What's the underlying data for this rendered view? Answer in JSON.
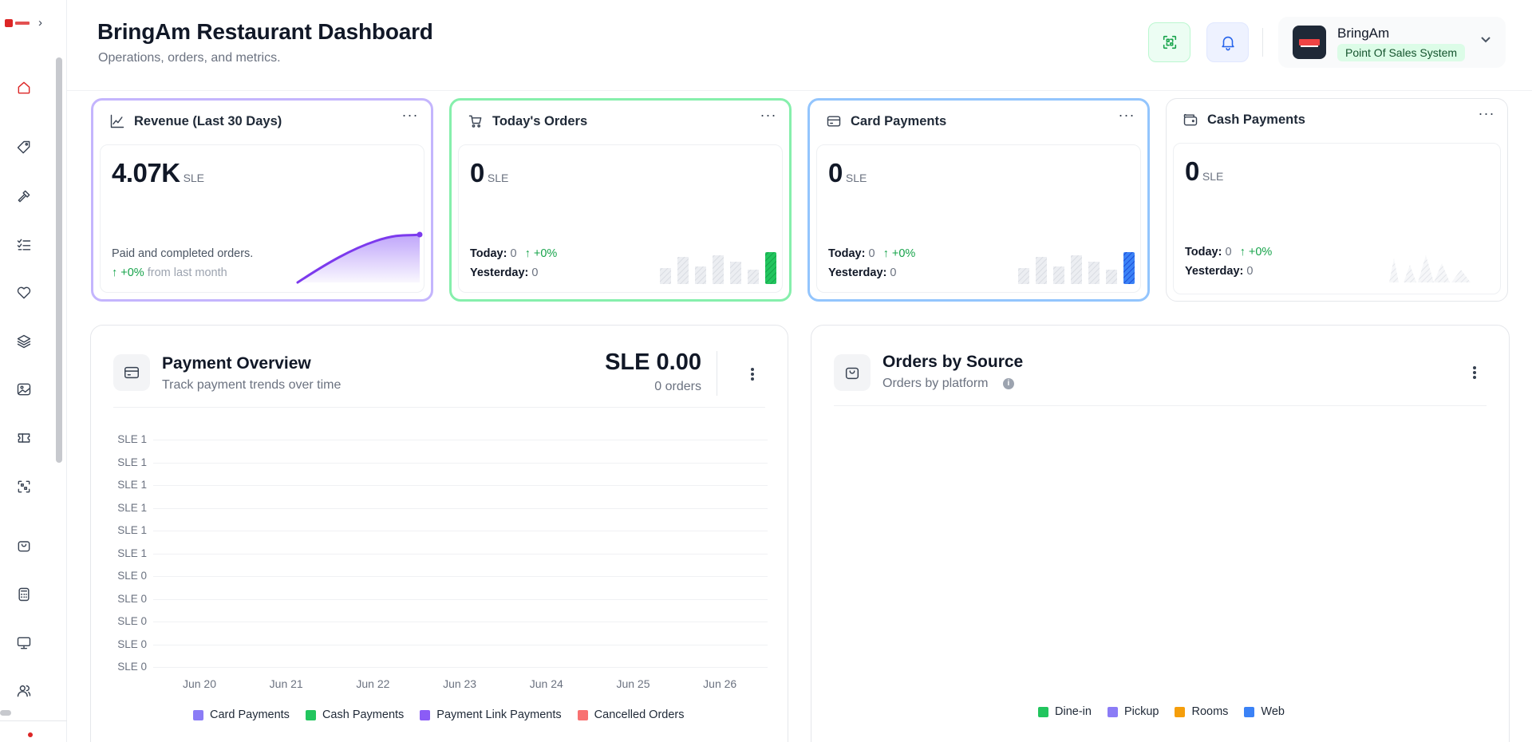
{
  "app": {
    "title": "BringAm Restaurant Dashboard",
    "subtitle": "Operations, orders, and metrics."
  },
  "sidebar": {
    "items": [
      {
        "icon": "home-icon",
        "active": true
      },
      {
        "icon": "tag-icon"
      },
      {
        "icon": "tools-icon"
      },
      {
        "icon": "checklist-icon"
      },
      {
        "icon": "heart-icon"
      },
      {
        "icon": "layers-icon"
      },
      {
        "icon": "image-icon"
      },
      {
        "icon": "ticket-icon"
      },
      {
        "icon": "scan-icon"
      },
      {
        "icon": "shopping-bag-icon"
      },
      {
        "icon": "calculator-icon"
      },
      {
        "icon": "monitor-icon"
      },
      {
        "icon": "users-icon"
      }
    ]
  },
  "header": {
    "account_name": "BringAm",
    "account_badge": "Point Of Sales System"
  },
  "cards": {
    "revenue": {
      "title": "Revenue (Last 30 Days)",
      "value": "4.07K",
      "unit": "SLE",
      "desc": "Paid and completed orders.",
      "trend": "↑ +0%",
      "trend_suffix": "from last month"
    },
    "orders": {
      "title": "Today's Orders",
      "value": "0",
      "unit": "SLE",
      "today_label": "Today:",
      "today_value": "0",
      "today_trend": "↑ +0%",
      "yesterday_label": "Yesterday:",
      "yesterday_value": "0"
    },
    "card": {
      "title": "Card Payments",
      "value": "0",
      "unit": "SLE",
      "today_label": "Today:",
      "today_value": "0",
      "today_trend": "↑ +0%",
      "yesterday_label": "Yesterday:",
      "yesterday_value": "0"
    },
    "cash": {
      "title": "Cash Payments",
      "value": "0",
      "unit": "SLE",
      "today_label": "Today:",
      "today_value": "0",
      "today_trend": "↑ +0%",
      "yesterday_label": "Yesterday:",
      "yesterday_value": "0"
    }
  },
  "payment_overview": {
    "title": "Payment Overview",
    "subtitle": "Track payment trends over time",
    "amount": "SLE 0.00",
    "count": "0 orders"
  },
  "orders_by_source": {
    "title": "Orders by Source",
    "subtitle": "Orders by platform",
    "legend": [
      {
        "name": "Dine-in",
        "color": "#22c55e"
      },
      {
        "name": "Pickup",
        "color": "#8b7cf6"
      },
      {
        "name": "Rooms",
        "color": "#f59e0b"
      },
      {
        "name": "Web",
        "color": "#3b82f6"
      }
    ]
  },
  "chart_data": {
    "type": "line",
    "title": "",
    "xlabel": "",
    "ylabel": "",
    "x": [
      "Jun 20",
      "Jun 21",
      "Jun 22",
      "Jun 23",
      "Jun 24",
      "Jun 25",
      "Jun 26"
    ],
    "y_ticks": [
      "SLE 1",
      "SLE 1",
      "SLE 1",
      "SLE 1",
      "SLE 1",
      "SLE 1",
      "SLE 0",
      "SLE 0",
      "SLE 0",
      "SLE 0",
      "SLE 0"
    ],
    "ylim": [
      0,
      1
    ],
    "grid": true,
    "legend_position": "bottom",
    "series": [
      {
        "name": "Card Payments",
        "color": "#8b7cf6",
        "values": [
          0,
          0,
          0,
          0,
          0,
          0,
          0
        ]
      },
      {
        "name": "Cash Payments",
        "color": "#22c55e",
        "values": [
          0,
          0,
          0,
          0,
          0,
          0,
          0
        ]
      },
      {
        "name": "Payment Link Payments",
        "color": "#8b5cf6",
        "values": [
          0,
          0,
          0,
          0,
          0,
          0,
          0
        ]
      },
      {
        "name": "Cancelled Orders",
        "color": "#f87171",
        "values": [
          0,
          0,
          0,
          0,
          0,
          0,
          0
        ]
      }
    ]
  }
}
